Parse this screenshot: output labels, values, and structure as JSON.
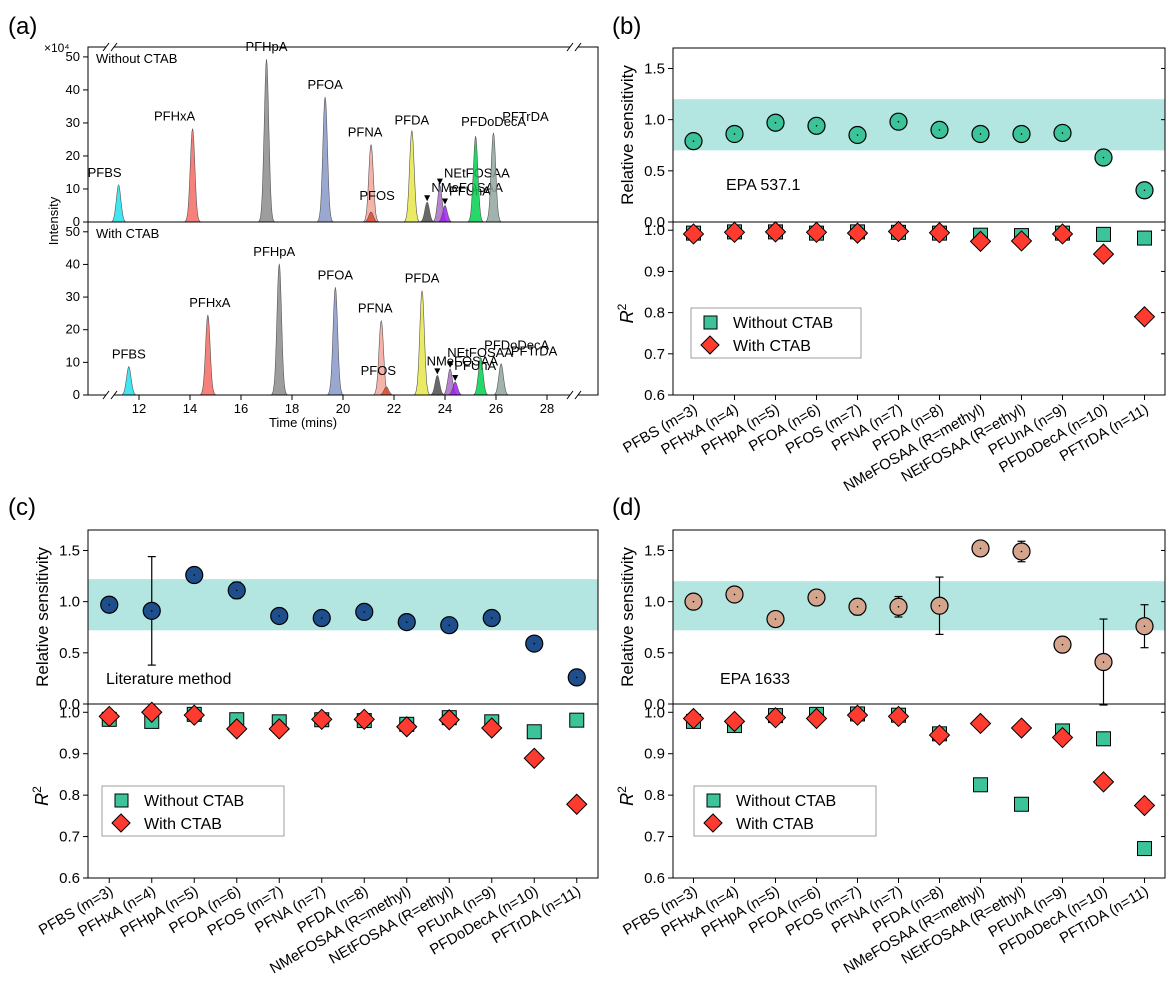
{
  "panels": {
    "a": {
      "letter": "(a)",
      "exponent": "×10⁴",
      "ylabel": "Intensity",
      "xlabel": "Time (mins)"
    },
    "b": {
      "letter": "(b)",
      "method": "EPA 537.1"
    },
    "c": {
      "letter": "(c)",
      "method": "Literature method"
    },
    "d": {
      "letter": "(d)",
      "method": "EPA 1633"
    }
  },
  "common": {
    "rs_label": "Relative sensitivity",
    "r2_label": "R",
    "r2_sup": "2",
    "legend_without": "Without CTAB",
    "legend_with": "With CTAB",
    "categories": [
      "PFBS (m=3)",
      "PFHxA (n=4)",
      "PFHpA (n=5)",
      "PFOA (n=6)",
      "PFOS (m=7)",
      "PFNA (n=7)",
      "PFDA (n=8)",
      "NMeFOSAA (R=methyl)",
      "NEtFOSAA (R=ethyl)",
      "PFUnA (n=9)",
      "PFDoDecA (n=10)",
      "PFTrDA (n=11)"
    ],
    "colors": {
      "band": "#b3e6e0",
      "without": "#3cc39a",
      "with": "#ff3b30",
      "b_marker": "#3cc39a",
      "c_marker": "#1f4e8c",
      "d_marker": "#d4a58c"
    }
  },
  "chart_data": [
    {
      "panel": "a",
      "type": "line",
      "xlabel": "Time (mins)",
      "ylabel": "Intensity",
      "y_multiplier": "×10⁴",
      "xlim": [
        10,
        30
      ],
      "ylim": [
        0,
        53
      ],
      "x_ticks": [
        12,
        14,
        16,
        18,
        20,
        22,
        24,
        26,
        28
      ],
      "y_ticks": [
        0,
        10,
        20,
        30,
        40,
        50
      ],
      "traces": [
        {
          "name": "Without CTAB",
          "peaks": [
            {
              "label": "PFBS",
              "rt": 11.2,
              "height": 11.2,
              "color": "#22e0ef"
            },
            {
              "label": "PFHxA",
              "rt": 14.1,
              "height": 28.3,
              "color": "#f46b63"
            },
            {
              "label": "PFHpA",
              "rt": 17.0,
              "height": 49.3,
              "color": "#8c8c8c"
            },
            {
              "label": "PFOA",
              "rt": 19.3,
              "height": 37.9,
              "color": "#8898c8"
            },
            {
              "label": "PFNA",
              "rt": 21.1,
              "height": 23.5,
              "color": "#f4a69a"
            },
            {
              "label": "PFOS",
              "rt": 21.1,
              "height": 3.0,
              "color": "#d9492c"
            },
            {
              "label": "PFDA",
              "rt": 22.7,
              "height": 27.7,
              "color": "#e8e64a"
            },
            {
              "label": "NMeFOSAA",
              "rt": 23.3,
              "height": 6.0,
              "color": "#4d4d4d"
            },
            {
              "label": "NEtFOSAA",
              "rt": 23.8,
              "height": 11.0,
              "color": "#a86fc4"
            },
            {
              "label": "PFUnA",
              "rt": 24.0,
              "height": 5.0,
              "color": "#a020f0"
            },
            {
              "label": "PFDoDecA",
              "rt": 25.2,
              "height": 26.0,
              "color": "#00d050"
            },
            {
              "label": "PFTrDA",
              "rt": 25.9,
              "height": 27.0,
              "color": "#8fa6a0"
            }
          ]
        },
        {
          "name": "With CTAB",
          "peaks": [
            {
              "label": "PFBS",
              "rt": 11.6,
              "height": 8.7,
              "color": "#22e0ef"
            },
            {
              "label": "PFHxA",
              "rt": 14.7,
              "height": 24.5,
              "color": "#f46b63"
            },
            {
              "label": "PFHpA",
              "rt": 17.5,
              "height": 40.2,
              "color": "#8c8c8c"
            },
            {
              "label": "PFOA",
              "rt": 19.7,
              "height": 33.0,
              "color": "#8898c8"
            },
            {
              "label": "PFNA",
              "rt": 21.5,
              "height": 22.8,
              "color": "#f4a69a"
            },
            {
              "label": "PFOS",
              "rt": 21.7,
              "height": 2.5,
              "color": "#d9492c"
            },
            {
              "label": "PFDA",
              "rt": 23.1,
              "height": 32.0,
              "color": "#e8e64a"
            },
            {
              "label": "NMeFOSAA",
              "rt": 23.7,
              "height": 6.0,
              "color": "#4d4d4d"
            },
            {
              "label": "NEtFOSAA",
              "rt": 24.2,
              "height": 8.0,
              "color": "#a86fc4"
            },
            {
              "label": "PFUnA",
              "rt": 24.4,
              "height": 4.0,
              "color": "#a020f0"
            },
            {
              "label": "PFDoDecA",
              "rt": 25.4,
              "height": 11.5,
              "color": "#00d050"
            },
            {
              "label": "PFTrDA",
              "rt": 26.2,
              "height": 9.6,
              "color": "#8fa6a0"
            }
          ]
        }
      ]
    },
    {
      "panel": "b",
      "type": "scatter",
      "method": "EPA 537.1",
      "rs": {
        "ylim": [
          0,
          1.7
        ],
        "y_ticks": [
          0.0,
          0.5,
          1.0,
          1.5
        ],
        "band": [
          0.7,
          1.2
        ],
        "values": [
          0.79,
          0.86,
          0.97,
          0.94,
          0.85,
          0.98,
          0.9,
          0.86,
          0.86,
          0.87,
          0.63,
          0.31
        ],
        "errors": [
          0.05,
          0.06,
          0.07,
          0.06,
          0.06,
          0.05,
          0.06,
          0.05,
          0.05,
          0.04,
          0.06,
          0.06
        ]
      },
      "r2": {
        "ylim": [
          0.6,
          1.02
        ],
        "y_ticks": [
          0.6,
          0.7,
          0.8,
          0.9,
          1.0
        ],
        "without": [
          0.993,
          0.996,
          0.996,
          0.993,
          0.996,
          0.995,
          0.993,
          0.988,
          0.987,
          0.993,
          0.99,
          0.981
        ],
        "with": [
          0.991,
          0.995,
          0.996,
          0.995,
          0.993,
          0.997,
          0.994,
          0.973,
          0.974,
          0.991,
          0.942,
          0.79
        ]
      }
    },
    {
      "panel": "c",
      "type": "scatter",
      "method": "Literature method",
      "rs": {
        "ylim": [
          0,
          1.7
        ],
        "y_ticks": [
          0.0,
          0.5,
          1.0,
          1.5
        ],
        "band": [
          0.72,
          1.22
        ],
        "values": [
          0.97,
          0.91,
          1.26,
          1.11,
          0.86,
          0.84,
          0.9,
          0.8,
          0.77,
          0.84,
          0.59,
          0.26
        ],
        "errors": [
          0.05,
          0.53,
          0.06,
          0.08,
          0.04,
          0.04,
          0.06,
          0.06,
          0.05,
          0.05,
          0.03,
          0.05
        ]
      },
      "r2": {
        "ylim": [
          0.6,
          1.02
        ],
        "y_ticks": [
          0.6,
          0.7,
          0.8,
          0.9,
          1.0
        ],
        "without": [
          0.983,
          0.978,
          0.995,
          0.982,
          0.977,
          0.982,
          0.98,
          0.971,
          0.987,
          0.977,
          0.953,
          0.981
        ],
        "with": [
          0.99,
          1.0,
          0.993,
          0.96,
          0.96,
          0.983,
          0.983,
          0.965,
          0.982,
          0.962,
          0.889,
          0.778
        ]
      }
    },
    {
      "panel": "d",
      "type": "scatter",
      "method": "EPA 1633",
      "rs": {
        "ylim": [
          0,
          1.7
        ],
        "y_ticks": [
          0.0,
          0.5,
          1.0,
          1.5
        ],
        "band": [
          0.72,
          1.2
        ],
        "values": [
          1.0,
          1.07,
          0.83,
          1.04,
          0.95,
          0.95,
          0.96,
          1.52,
          1.49,
          0.58,
          0.41,
          0.76
        ],
        "errors": [
          0.05,
          0.06,
          0.06,
          0.06,
          0.08,
          0.1,
          0.28,
          0.05,
          0.1,
          0.05,
          0.42,
          0.21
        ]
      },
      "r2": {
        "ylim": [
          0.6,
          1.02
        ],
        "y_ticks": [
          0.6,
          0.7,
          0.8,
          0.9,
          1.0
        ],
        "without": [
          0.978,
          0.968,
          0.992,
          0.995,
          0.996,
          0.993,
          0.948,
          0.825,
          0.778,
          0.955,
          0.936,
          0.671
        ],
        "with": [
          0.985,
          0.978,
          0.987,
          0.985,
          0.993,
          0.99,
          0.945,
          0.973,
          0.962,
          0.939,
          0.832,
          0.775
        ]
      }
    }
  ]
}
